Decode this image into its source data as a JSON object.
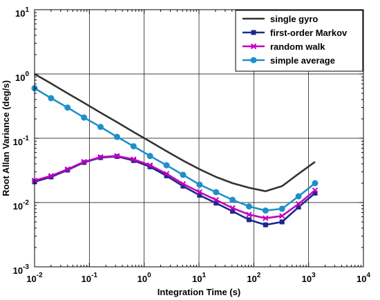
{
  "chart_data": {
    "type": "line",
    "title": "",
    "xlabel": "Integration Time (s)",
    "ylabel": "Root Allan Variance (deg/s)",
    "xscale": "log",
    "yscale": "log",
    "xlim": [
      0.01,
      10000
    ],
    "ylim": [
      0.001,
      10
    ],
    "grid": true,
    "legend_position": "top-right",
    "x_tick_labels": [
      {
        "base": "10",
        "exp": "-2"
      },
      {
        "base": "10",
        "exp": "-1"
      },
      {
        "base": "10",
        "exp": "0"
      },
      {
        "base": "10",
        "exp": "1"
      },
      {
        "base": "10",
        "exp": "2"
      },
      {
        "base": "10",
        "exp": "3"
      },
      {
        "base": "10",
        "exp": "4"
      }
    ],
    "y_tick_labels": [
      {
        "base": "10",
        "exp": "-3"
      },
      {
        "base": "10",
        "exp": "-2"
      },
      {
        "base": "10",
        "exp": "-1"
      },
      {
        "base": "10",
        "exp": "0"
      },
      {
        "base": "10",
        "exp": "1"
      }
    ],
    "series": [
      {
        "name": "single gyro",
        "color": "#333333",
        "marker": "none",
        "x": [
          0.01,
          0.02,
          0.04,
          0.08,
          0.16,
          0.32,
          0.64,
          1.28,
          2.56,
          5.12,
          10.24,
          20.48,
          40.96,
          81.92,
          163.84,
          327.68,
          655.36,
          1310.72
        ],
        "y": [
          1.0,
          0.71,
          0.5,
          0.355,
          0.25,
          0.178,
          0.125,
          0.089,
          0.063,
          0.045,
          0.033,
          0.025,
          0.02,
          0.017,
          0.015,
          0.018,
          0.028,
          0.043
        ]
      },
      {
        "name": "first-order Markov",
        "color": "#1a2a8a",
        "marker": "square",
        "x": [
          0.01,
          0.02,
          0.04,
          0.08,
          0.16,
          0.32,
          0.64,
          1.28,
          2.56,
          5.12,
          10.24,
          20.48,
          40.96,
          81.92,
          163.84,
          327.68,
          655.36,
          1310.72
        ],
        "y": [
          0.021,
          0.025,
          0.032,
          0.042,
          0.05,
          0.052,
          0.045,
          0.036,
          0.026,
          0.018,
          0.013,
          0.0098,
          0.0073,
          0.0054,
          0.0045,
          0.005,
          0.0085,
          0.014
        ]
      },
      {
        "name": "random walk",
        "color": "#c000c0",
        "marker": "x",
        "x": [
          0.01,
          0.02,
          0.04,
          0.08,
          0.16,
          0.32,
          0.64,
          1.28,
          2.56,
          5.12,
          10.24,
          20.48,
          40.96,
          81.92,
          163.84,
          327.68,
          655.36,
          1310.72
        ],
        "y": [
          0.022,
          0.026,
          0.033,
          0.043,
          0.051,
          0.053,
          0.047,
          0.038,
          0.028,
          0.0195,
          0.0145,
          0.011,
          0.0082,
          0.0065,
          0.0057,
          0.0062,
          0.0095,
          0.0155
        ]
      },
      {
        "name": "simple average",
        "color": "#1e90c8",
        "marker": "circle",
        "x": [
          0.01,
          0.02,
          0.04,
          0.08,
          0.16,
          0.32,
          0.64,
          1.28,
          2.56,
          5.12,
          10.24,
          20.48,
          40.96,
          81.92,
          163.84,
          327.68,
          655.36,
          1310.72
        ],
        "y": [
          0.6,
          0.42,
          0.3,
          0.21,
          0.15,
          0.105,
          0.075,
          0.053,
          0.038,
          0.027,
          0.019,
          0.0145,
          0.011,
          0.0087,
          0.0075,
          0.008,
          0.0125,
          0.02
        ]
      }
    ]
  }
}
